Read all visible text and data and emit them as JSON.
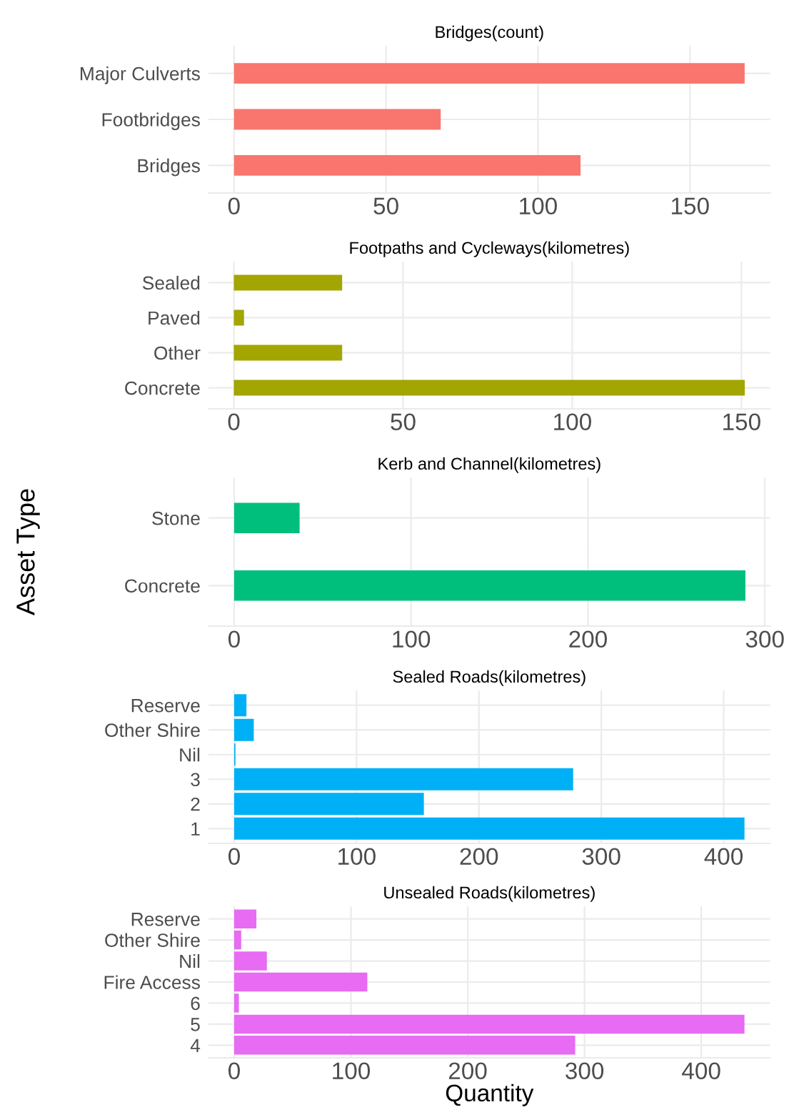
{
  "chart_data": [
    {
      "type": "bar",
      "orientation": "horizontal",
      "title": "Bridges(count)",
      "categories": [
        "Major Culverts",
        "Footbridges",
        "Bridges"
      ],
      "series": [
        {
          "color": "#f8766d",
          "values": [
            168,
            68,
            114
          ]
        }
      ],
      "xlim": [
        -8.4,
        176.4
      ],
      "xticks": [
        0,
        50,
        100,
        150
      ],
      "grid": true
    },
    {
      "type": "bar",
      "orientation": "horizontal",
      "title": "Footpaths and Cycleways(kilometres)",
      "categories": [
        "Sealed",
        "Paved",
        "Other",
        "Concrete"
      ],
      "series": [
        {
          "color": "#a3a500",
          "values": [
            32,
            3,
            32,
            151
          ]
        }
      ],
      "xlim": [
        -7.5,
        158.5
      ],
      "xticks": [
        0,
        50,
        100,
        150
      ],
      "grid": true
    },
    {
      "type": "bar",
      "orientation": "horizontal",
      "title": "Kerb and Channel(kilometres)",
      "ylabel": "Asset Type",
      "categories": [
        "Stone",
        "Concrete"
      ],
      "series": [
        {
          "color": "#00bf7d",
          "values": [
            37,
            289
          ]
        }
      ],
      "xlim": [
        -14.5,
        303
      ],
      "xticks": [
        0,
        100,
        200,
        300
      ],
      "grid": true
    },
    {
      "type": "bar",
      "orientation": "horizontal",
      "title": "Sealed Roads(kilometres)",
      "categories": [
        "Reserve",
        "Other Shire",
        "Nil",
        "3",
        "2",
        "1"
      ],
      "series": [
        {
          "color": "#00b0f6",
          "values": [
            10,
            16,
            1,
            277,
            155,
            417
          ]
        }
      ],
      "xlim": [
        -21,
        438
      ],
      "xticks": [
        0,
        100,
        200,
        300,
        400
      ],
      "grid": true
    },
    {
      "type": "bar",
      "orientation": "horizontal",
      "title": "Unsealed Roads(kilometres)",
      "xlabel": "Quantity",
      "categories": [
        "Reserve",
        "Other Shire",
        "Nil",
        "Fire Access",
        "6",
        "5",
        "4"
      ],
      "series": [
        {
          "color": "#e76bf3",
          "values": [
            19,
            6,
            28,
            114,
            4,
            437,
            292
          ]
        }
      ],
      "xlim": [
        -22,
        459
      ],
      "xticks": [
        0,
        100,
        200,
        300,
        400
      ],
      "grid": true
    }
  ]
}
